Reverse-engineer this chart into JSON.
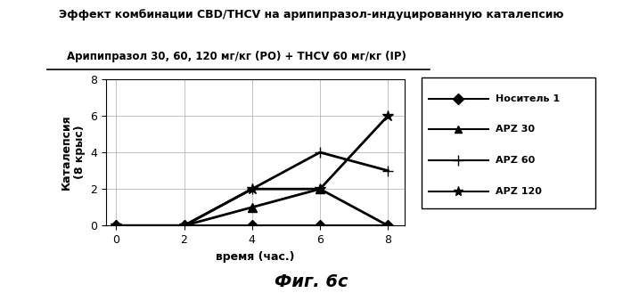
{
  "title": "Эффект комбинации CBD/THCV на арипипразол-индуцированную каталепсию",
  "subtitle": "Арипипразол 30, 60, 120 мг/кг (РО) + THCV 60 мг/кг (IP)",
  "xlabel": "время (час.)",
  "ylabel": "Каталепсия\n(8 крыс)",
  "footer": "Фиг. 6с",
  "x": [
    0,
    2,
    4,
    6,
    8
  ],
  "series": [
    {
      "label": "Носитель 1",
      "y": [
        0,
        0,
        0,
        0,
        0
      ],
      "color": "#000000",
      "marker": "D",
      "markersize": 6,
      "linewidth": 1.5
    },
    {
      "label": "APZ 30",
      "y": [
        0,
        0,
        1,
        2,
        0
      ],
      "color": "#000000",
      "marker": "^",
      "markersize": 7,
      "linewidth": 2
    },
    {
      "label": "APZ 60",
      "y": [
        0,
        0,
        2,
        4,
        3
      ],
      "color": "#000000",
      "marker": "+",
      "markersize": 9,
      "linewidth": 2
    },
    {
      "label": "APZ 120",
      "y": [
        0,
        0,
        2,
        2,
        6
      ],
      "color": "#000000",
      "marker": "*",
      "markersize": 9,
      "linewidth": 2
    }
  ],
  "legend_entries": [
    {
      "marker": "D",
      "label": "Носитель 1"
    },
    {
      "marker": "^",
      "label": "APZ 30"
    },
    {
      "marker": "+",
      "label": "APZ 60"
    },
    {
      "marker": "*",
      "label": "APZ 120"
    }
  ],
  "xlim": [
    -0.3,
    8.5
  ],
  "ylim": [
    0,
    8
  ],
  "xticks": [
    0,
    2,
    4,
    6,
    8
  ],
  "yticks": [
    0,
    2,
    4,
    6,
    8
  ],
  "background_color": "#ffffff",
  "grid": true
}
